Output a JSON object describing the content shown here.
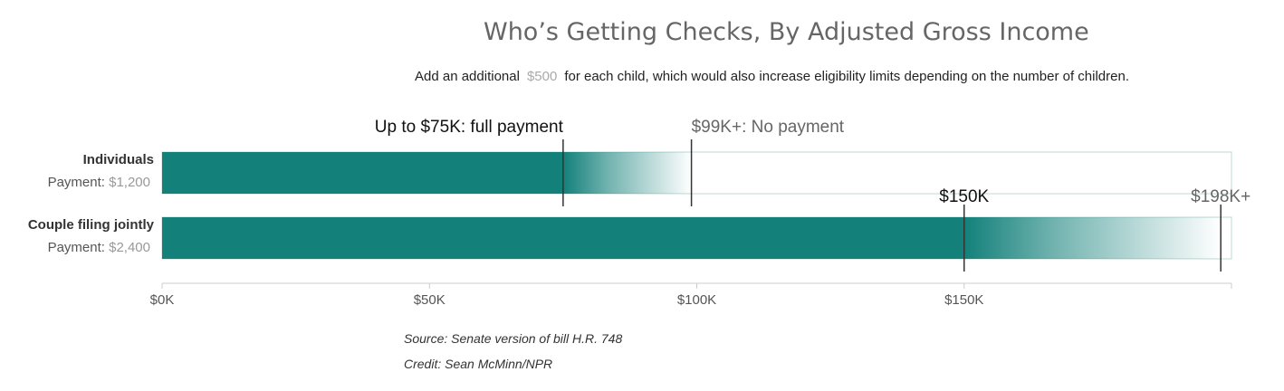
{
  "header": {
    "title": "Who’s Getting Checks, By Adjusted Gross Income",
    "subtitle_pre": "Add an additional",
    "subtitle_amount": "$500",
    "subtitle_post": "for each child, which would also increase eligibility limits depending on the number of children."
  },
  "footer": {
    "source": "Source: Senate version of bill H.R. 748",
    "credit": "Credit: Sean McMinn/NPR"
  },
  "colors": {
    "bar": "#13807a",
    "outline": "#bcd8d4",
    "axis": "#cccccc",
    "muted": "#999999",
    "dark": "#333333"
  },
  "chart_data": {
    "type": "bar",
    "x_unit": "adjusted gross income ($)",
    "xlim": [
      0,
      200000
    ],
    "x_ticks": [
      0,
      50000,
      100000,
      150000
    ],
    "x_tick_labels": [
      "$0K",
      "$50K",
      "$100K",
      "$150K"
    ],
    "series": [
      {
        "name": "Individuals",
        "payment_label": "Payment:",
        "payment": "$1,200",
        "full_payment_up_to": 75000,
        "no_payment_from": 99000,
        "markers": [
          {
            "value": 75000,
            "label": "Up to $75K: full payment",
            "style": "dark"
          },
          {
            "value": 99000,
            "label": "$99K+: No payment",
            "style": "muted"
          }
        ]
      },
      {
        "name": "Couple filing jointly",
        "payment_label": "Payment:",
        "payment": "$2,400",
        "full_payment_up_to": 150000,
        "no_payment_from": 198000,
        "markers": [
          {
            "value": 150000,
            "label": "$150K",
            "style": "dark"
          },
          {
            "value": 198000,
            "label": "$198K+",
            "style": "muted"
          }
        ]
      }
    ]
  }
}
